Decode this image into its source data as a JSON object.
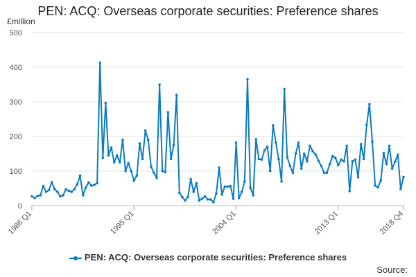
{
  "chart_data": {
    "type": "line",
    "title": "PEN: ACQ: Overseas corporate securities: Preference shares",
    "ylabel": "£million",
    "ylim": [
      0,
      500
    ],
    "yticks": [
      0,
      100,
      200,
      300,
      400,
      500
    ],
    "xticks": [
      "1986 Q1",
      "1995 Q1",
      "2004 Q1",
      "2013 Q1",
      "2018 Q4"
    ],
    "grid": true,
    "legend_position": "bottom",
    "series": [
      {
        "name": "PEN: ACQ: Overseas corporate securities: Preference shares",
        "color": "#0b7bc1",
        "x": [
          "1986 Q1",
          "1986 Q2",
          "1986 Q3",
          "1986 Q4",
          "1987 Q1",
          "1987 Q2",
          "1987 Q3",
          "1987 Q4",
          "1988 Q1",
          "1988 Q2",
          "1988 Q3",
          "1988 Q4",
          "1989 Q1",
          "1989 Q2",
          "1989 Q3",
          "1989 Q4",
          "1990 Q1",
          "1990 Q2",
          "1990 Q3",
          "1990 Q4",
          "1991 Q1",
          "1991 Q2",
          "1991 Q3",
          "1991 Q4",
          "1992 Q1",
          "1992 Q2",
          "1992 Q3",
          "1992 Q4",
          "1993 Q1",
          "1993 Q2",
          "1993 Q3",
          "1993 Q4",
          "1994 Q1",
          "1994 Q2",
          "1994 Q3",
          "1994 Q4",
          "1995 Q1",
          "1995 Q2",
          "1995 Q3",
          "1995 Q4",
          "1996 Q1",
          "1996 Q2",
          "1996 Q3",
          "1996 Q4",
          "1997 Q1",
          "1997 Q2",
          "1997 Q3",
          "1997 Q4",
          "1998 Q1",
          "1998 Q2",
          "1998 Q3",
          "1998 Q4",
          "1999 Q1",
          "1999 Q2",
          "1999 Q3",
          "1999 Q4",
          "2000 Q1",
          "2000 Q2",
          "2000 Q3",
          "2000 Q4",
          "2001 Q1",
          "2001 Q2",
          "2001 Q3",
          "2001 Q4",
          "2002 Q1",
          "2002 Q2",
          "2002 Q3",
          "2002 Q4",
          "2003 Q1",
          "2003 Q2",
          "2003 Q3",
          "2003 Q4",
          "2004 Q1",
          "2004 Q2",
          "2004 Q3",
          "2004 Q4",
          "2005 Q1",
          "2005 Q2",
          "2005 Q3",
          "2005 Q4",
          "2006 Q1",
          "2006 Q2",
          "2006 Q3",
          "2006 Q4",
          "2007 Q1",
          "2007 Q2",
          "2007 Q3",
          "2007 Q4",
          "2008 Q1",
          "2008 Q2",
          "2008 Q3",
          "2008 Q4",
          "2009 Q1",
          "2009 Q2",
          "2009 Q3",
          "2009 Q4",
          "2010 Q1",
          "2010 Q2",
          "2010 Q3",
          "2010 Q4",
          "2011 Q1",
          "2011 Q2",
          "2011 Q3",
          "2011 Q4",
          "2012 Q1",
          "2012 Q2",
          "2012 Q3",
          "2012 Q4",
          "2013 Q1",
          "2013 Q2",
          "2013 Q3",
          "2013 Q4",
          "2014 Q1",
          "2014 Q2",
          "2014 Q3",
          "2014 Q4",
          "2015 Q1",
          "2015 Q2",
          "2015 Q3",
          "2015 Q4",
          "2016 Q1",
          "2016 Q2",
          "2016 Q3",
          "2016 Q4",
          "2017 Q1",
          "2017 Q2",
          "2017 Q3",
          "2017 Q4",
          "2018 Q1",
          "2018 Q2",
          "2018 Q3",
          "2018 Q4"
        ],
        "values": [
          27,
          22,
          28,
          30,
          57,
          40,
          45,
          68,
          48,
          40,
          27,
          30,
          47,
          43,
          40,
          48,
          62,
          87,
          30,
          52,
          67,
          58,
          60,
          65,
          413,
          138,
          297,
          145,
          168,
          125,
          145,
          125,
          190,
          100,
          123,
          100,
          72,
          87,
          180,
          135,
          217,
          190,
          113,
          95,
          80,
          350,
          100,
          97,
          270,
          135,
          175,
          320,
          37,
          25,
          15,
          25,
          77,
          40,
          65,
          15,
          20,
          27,
          18,
          18,
          10,
          35,
          110,
          32,
          55,
          55,
          57,
          20,
          182,
          22,
          40,
          70,
          365,
          52,
          30,
          192,
          135,
          133,
          160,
          170,
          100,
          232,
          182,
          135,
          70,
          337,
          140,
          115,
          95,
          150,
          182,
          107,
          150,
          128,
          173,
          157,
          148,
          130,
          115,
          95,
          95,
          120,
          143,
          138,
          117,
          133,
          128,
          173,
          42,
          128,
          133,
          82,
          178,
          135,
          233,
          293,
          185,
          58,
          53,
          73,
          152,
          120,
          173,
          107,
          127,
          147,
          48,
          83
        ]
      }
    ]
  },
  "legend": {
    "label": "PEN: ACQ: Overseas corporate securities: Preference shares"
  },
  "footer": {
    "source_label": "Source:"
  }
}
